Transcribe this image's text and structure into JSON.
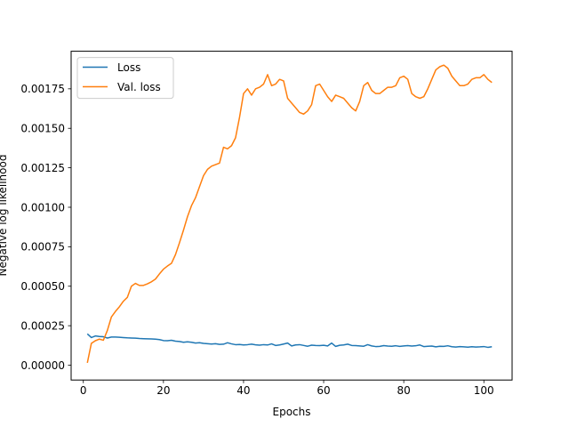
{
  "chart_data": {
    "type": "line",
    "xlabel": "Epochs",
    "ylabel": "Negative log likelihood",
    "xlim": [
      -3.05,
      107.05
    ],
    "ylim": [
      -9.4e-05,
      0.001988
    ],
    "xticks": [
      0,
      20,
      40,
      60,
      80,
      100
    ],
    "xtick_labels": [
      "0",
      "20",
      "40",
      "60",
      "80",
      "100"
    ],
    "yticks": [
      0,
      0.00025,
      0.0005,
      0.00075,
      0.001,
      0.00125,
      0.0015,
      0.00175
    ],
    "ytick_labels": [
      "0.00000",
      "0.00025",
      "0.00050",
      "0.00075",
      "0.00100",
      "0.00125",
      "0.00150",
      "0.00175"
    ],
    "grid": false,
    "legend": {
      "position": "top-left",
      "entries": [
        "Loss",
        "Val. loss"
      ]
    },
    "series": [
      {
        "name": "Loss",
        "color": "#1f77b4",
        "x": [
          1,
          2,
          3,
          4,
          5,
          6,
          7,
          8,
          9,
          10,
          11,
          12,
          13,
          14,
          15,
          16,
          17,
          18,
          19,
          20,
          21,
          22,
          23,
          24,
          25,
          26,
          27,
          28,
          29,
          30,
          31,
          32,
          33,
          34,
          35,
          36,
          37,
          38,
          39,
          40,
          41,
          42,
          43,
          44,
          45,
          46,
          47,
          48,
          49,
          50,
          51,
          52,
          53,
          54,
          55,
          56,
          57,
          58,
          59,
          60,
          61,
          62,
          63,
          64,
          65,
          66,
          67,
          68,
          69,
          70,
          71,
          72,
          73,
          74,
          75,
          76,
          77,
          78,
          79,
          80,
          81,
          82,
          83,
          84,
          85,
          86,
          87,
          88,
          89,
          90,
          91,
          92,
          93,
          94,
          95,
          96,
          97,
          98,
          99,
          100,
          101,
          102
        ],
        "values": [
          0.000198,
          0.000175,
          0.000185,
          0.000182,
          0.00018,
          0.000172,
          0.000178,
          0.000178,
          0.000177,
          0.000175,
          0.000173,
          0.000172,
          0.000171,
          0.000169,
          0.000168,
          0.000167,
          0.000166,
          0.000165,
          0.000162,
          0.000156,
          0.000155,
          0.000158,
          0.000152,
          0.00015,
          0.000145,
          0.000148,
          0.000145,
          0.00014,
          0.000142,
          0.000138,
          0.000136,
          0.000134,
          0.000136,
          0.000132,
          0.000133,
          0.000142,
          0.000135,
          0.00013,
          0.000131,
          0.000128,
          0.00013,
          0.000133,
          0.000129,
          0.000127,
          0.00013,
          0.000128,
          0.000135,
          0.000125,
          0.000128,
          0.000134,
          0.00014,
          0.000122,
          0.000128,
          0.00013,
          0.000125,
          0.00012,
          0.000127,
          0.000125,
          0.000124,
          0.000126,
          0.000122,
          0.00014,
          0.000119,
          0.000126,
          0.000128,
          0.000133,
          0.000125,
          0.000124,
          0.000122,
          0.00012,
          0.00013,
          0.000122,
          0.000118,
          0.000119,
          0.000124,
          0.000121,
          0.00012,
          0.000123,
          0.000119,
          0.000122,
          0.000124,
          0.000121,
          0.000123,
          0.000128,
          0.000118,
          0.00012,
          0.000121,
          0.000116,
          0.00012,
          0.000119,
          0.000123,
          0.000117,
          0.000115,
          0.000118,
          0.000116,
          0.000114,
          0.000117,
          0.000115,
          0.000116,
          0.000118,
          0.000113,
          0.000117
        ]
      },
      {
        "name": "Val. loss",
        "color": "#ff7f0e",
        "x": [
          1,
          2,
          3,
          4,
          5,
          6,
          7,
          8,
          9,
          10,
          11,
          12,
          13,
          14,
          15,
          16,
          17,
          18,
          19,
          20,
          21,
          22,
          23,
          24,
          25,
          26,
          27,
          28,
          29,
          30,
          31,
          32,
          33,
          34,
          35,
          36,
          37,
          38,
          39,
          40,
          41,
          42,
          43,
          44,
          45,
          46,
          47,
          48,
          49,
          50,
          51,
          52,
          53,
          54,
          55,
          56,
          57,
          58,
          59,
          60,
          61,
          62,
          63,
          64,
          65,
          66,
          67,
          68,
          69,
          70,
          71,
          72,
          73,
          74,
          75,
          76,
          77,
          78,
          79,
          80,
          81,
          82,
          83,
          84,
          85,
          86,
          87,
          88,
          89,
          90,
          91,
          92,
          93,
          94,
          95,
          96,
          97,
          98,
          99,
          100,
          101,
          102
        ],
        "values": [
          1.5e-05,
          0.000138,
          0.000155,
          0.000165,
          0.000158,
          0.00022,
          0.000305,
          0.00034,
          0.00037,
          0.000405,
          0.00043,
          0.0005,
          0.000518,
          0.000505,
          0.000505,
          0.000515,
          0.000528,
          0.000545,
          0.000578,
          0.000608,
          0.000628,
          0.000645,
          0.0007,
          0.000775,
          0.000855,
          0.00094,
          0.00101,
          0.00106,
          0.00113,
          0.0012,
          0.00124,
          0.00126,
          0.00127,
          0.00128,
          0.00138,
          0.00137,
          0.00139,
          0.00144,
          0.00157,
          0.00172,
          0.00175,
          0.00171,
          0.00175,
          0.00176,
          0.00178,
          0.00184,
          0.00177,
          0.00178,
          0.00181,
          0.0018,
          0.00169,
          0.00166,
          0.00163,
          0.0016,
          0.00159,
          0.00161,
          0.00165,
          0.00177,
          0.00178,
          0.00174,
          0.0017,
          0.00167,
          0.00171,
          0.0017,
          0.00169,
          0.00166,
          0.00163,
          0.00161,
          0.00167,
          0.00177,
          0.00179,
          0.00174,
          0.00172,
          0.00172,
          0.00174,
          0.00176,
          0.00176,
          0.00177,
          0.00182,
          0.00183,
          0.00181,
          0.00172,
          0.0017,
          0.00169,
          0.0017,
          0.00175,
          0.00181,
          0.00187,
          0.00189,
          0.0019,
          0.00188,
          0.00183,
          0.0018,
          0.00177,
          0.00177,
          0.00178,
          0.00181,
          0.00182,
          0.00182,
          0.00184,
          0.00181,
          0.00179
        ]
      }
    ]
  }
}
